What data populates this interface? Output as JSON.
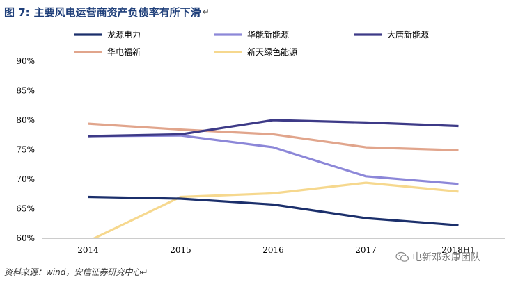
{
  "header": {
    "figure_label": "图 7:",
    "title": "主要风电运营商资产负债率有所下滑",
    "mark": "↵"
  },
  "footer": {
    "source": "资料来源：wind，安信证券研究中心↵",
    "watermark": "电新邓永康团队"
  },
  "chart_data": {
    "type": "line",
    "categories": [
      "2014",
      "2015",
      "2016",
      "2017",
      "2018H1"
    ],
    "y_ticks": [
      "60%",
      "65%",
      "70%",
      "75%",
      "80%",
      "85%",
      "90%"
    ],
    "ylim": [
      60,
      90
    ],
    "grid": false,
    "legend_position": "top",
    "series": [
      {
        "name": "龙源电力",
        "color": "#1b2f6b",
        "values": [
          67.0,
          66.7,
          65.7,
          63.4,
          62.2
        ]
      },
      {
        "name": "华能新能源",
        "color": "#8c87d8",
        "values": [
          77.3,
          77.4,
          75.4,
          70.5,
          69.2
        ]
      },
      {
        "name": "大唐新能源",
        "color": "#3d3a87",
        "values": [
          77.3,
          77.6,
          80.0,
          79.6,
          79.0
        ]
      },
      {
        "name": "华电福新",
        "color": "#e1a58c",
        "values": [
          79.4,
          78.4,
          77.6,
          75.4,
          74.9
        ]
      },
      {
        "name": "新天绿色能源",
        "color": "#f6d88e",
        "values": [
          59.5,
          67.0,
          67.6,
          69.4,
          67.9
        ]
      }
    ]
  }
}
